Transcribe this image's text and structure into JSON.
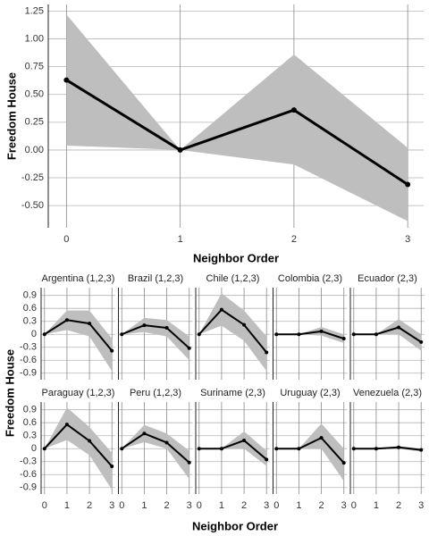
{
  "chart_data": [
    {
      "type": "line",
      "ylabel": "Freedom House",
      "xlabel": "Neighbor Order",
      "x": [
        0,
        1,
        2,
        3
      ],
      "values": [
        0.63,
        0,
        0.36,
        -0.31
      ],
      "lower": [
        0.04,
        0,
        -0.13,
        -0.64
      ],
      "upper": [
        1.22,
        0,
        0.86,
        0.02
      ],
      "xlim": [
        -0.16,
        3.14
      ],
      "ylim": [
        -0.7,
        1.31
      ],
      "xticks": [
        0,
        1,
        2,
        3
      ],
      "yticks": [
        {
          "value": -0.5,
          "label": "-0.50"
        },
        {
          "value": -0.25,
          "label": "-0.25"
        },
        {
          "value": 0,
          "label": "0.00"
        },
        {
          "value": 0.25,
          "label": "0.25"
        },
        {
          "value": 0.5,
          "label": "0.50"
        },
        {
          "value": 0.75,
          "label": "0.75"
        },
        {
          "value": 1,
          "label": "1.00"
        },
        {
          "value": 1.25,
          "label": "1.25"
        }
      ],
      "color": "#000000",
      "band_color": "#bebebe",
      "grid": true
    },
    {
      "type": "line",
      "ylabel": "Freedom House",
      "xlabel": "Neighbor Order",
      "xlim": [
        -0.15,
        3.15
      ],
      "ylim": [
        -1.05,
        1.08
      ],
      "xticks": [
        0,
        1,
        2,
        3
      ],
      "yticks": [
        -0.9,
        -0.6,
        -0.3,
        0,
        0.3,
        0.6,
        0.9
      ],
      "color": "#000000",
      "band_color": "#bebebe",
      "grid": true,
      "panels": [
        {
          "title": "Argentina (1,2,3)",
          "x": [
            0,
            1,
            2,
            3
          ],
          "values": [
            0,
            0.33,
            0.25,
            -0.38
          ],
          "lower": [
            0,
            0.1,
            -0.05,
            -0.85
          ],
          "upper": [
            0,
            0.55,
            0.55,
            -0.1
          ]
        },
        {
          "title": "Brazil (1,2,3)",
          "x": [
            0,
            1,
            2,
            3
          ],
          "values": [
            0,
            0.21,
            0.15,
            -0.32
          ],
          "lower": [
            0,
            0.05,
            -0.05,
            -0.6
          ],
          "upper": [
            0,
            0.38,
            0.33,
            -0.05
          ]
        },
        {
          "title": "Chile (1,2,3)",
          "x": [
            0,
            1,
            2,
            3
          ],
          "values": [
            0,
            0.57,
            0.22,
            -0.42
          ],
          "lower": [
            0,
            0.2,
            -0.15,
            -0.85
          ],
          "upper": [
            0,
            0.95,
            0.55,
            -0.05
          ]
        },
        {
          "title": "Colombia (2,3)",
          "x": [
            0,
            1,
            2,
            3
          ],
          "values": [
            0,
            0,
            0.07,
            -0.1
          ],
          "lower": [
            0,
            0,
            -0.03,
            -0.2
          ],
          "upper": [
            0,
            0,
            0.17,
            0
          ]
        },
        {
          "title": "Ecuador (2,3)",
          "x": [
            0,
            1,
            2,
            3
          ],
          "values": [
            0,
            0,
            0.16,
            -0.18
          ],
          "lower": [
            0,
            0,
            0,
            -0.38
          ],
          "upper": [
            0,
            0,
            0.35,
            0
          ]
        },
        {
          "title": "Paraguay (1,2,3)",
          "x": [
            0,
            1,
            2,
            3
          ],
          "values": [
            0,
            0.56,
            0.18,
            -0.41
          ],
          "lower": [
            0,
            0.2,
            -0.15,
            -0.95
          ],
          "upper": [
            0,
            0.95,
            0.5,
            -0.1
          ]
        },
        {
          "title": "Peru (1,2,3)",
          "x": [
            0,
            1,
            2,
            3
          ],
          "values": [
            0,
            0.35,
            0.14,
            -0.32
          ],
          "lower": [
            0,
            0.15,
            0,
            -0.7
          ],
          "upper": [
            0,
            0.55,
            0.35,
            -0.05
          ]
        },
        {
          "title": "Suriname (2,3)",
          "x": [
            0,
            1,
            2,
            3
          ],
          "values": [
            0,
            0,
            0.19,
            -0.25
          ],
          "lower": [
            0,
            0,
            0,
            -0.4
          ],
          "upper": [
            0,
            0,
            0.4,
            -0.05
          ]
        },
        {
          "title": "Uruguay (2,3)",
          "x": [
            0,
            1,
            2,
            3
          ],
          "values": [
            0,
            0,
            0.25,
            -0.33
          ],
          "lower": [
            0,
            0,
            0,
            -0.75
          ],
          "upper": [
            0,
            0,
            0.58,
            0
          ]
        },
        {
          "title": "Venezuela (2,3)",
          "x": [
            0,
            1,
            2,
            3
          ],
          "values": [
            0,
            0,
            0.03,
            -0.03
          ],
          "lower": [
            0,
            0,
            0,
            -0.07
          ],
          "upper": [
            0,
            0,
            0.06,
            0
          ]
        }
      ]
    }
  ]
}
